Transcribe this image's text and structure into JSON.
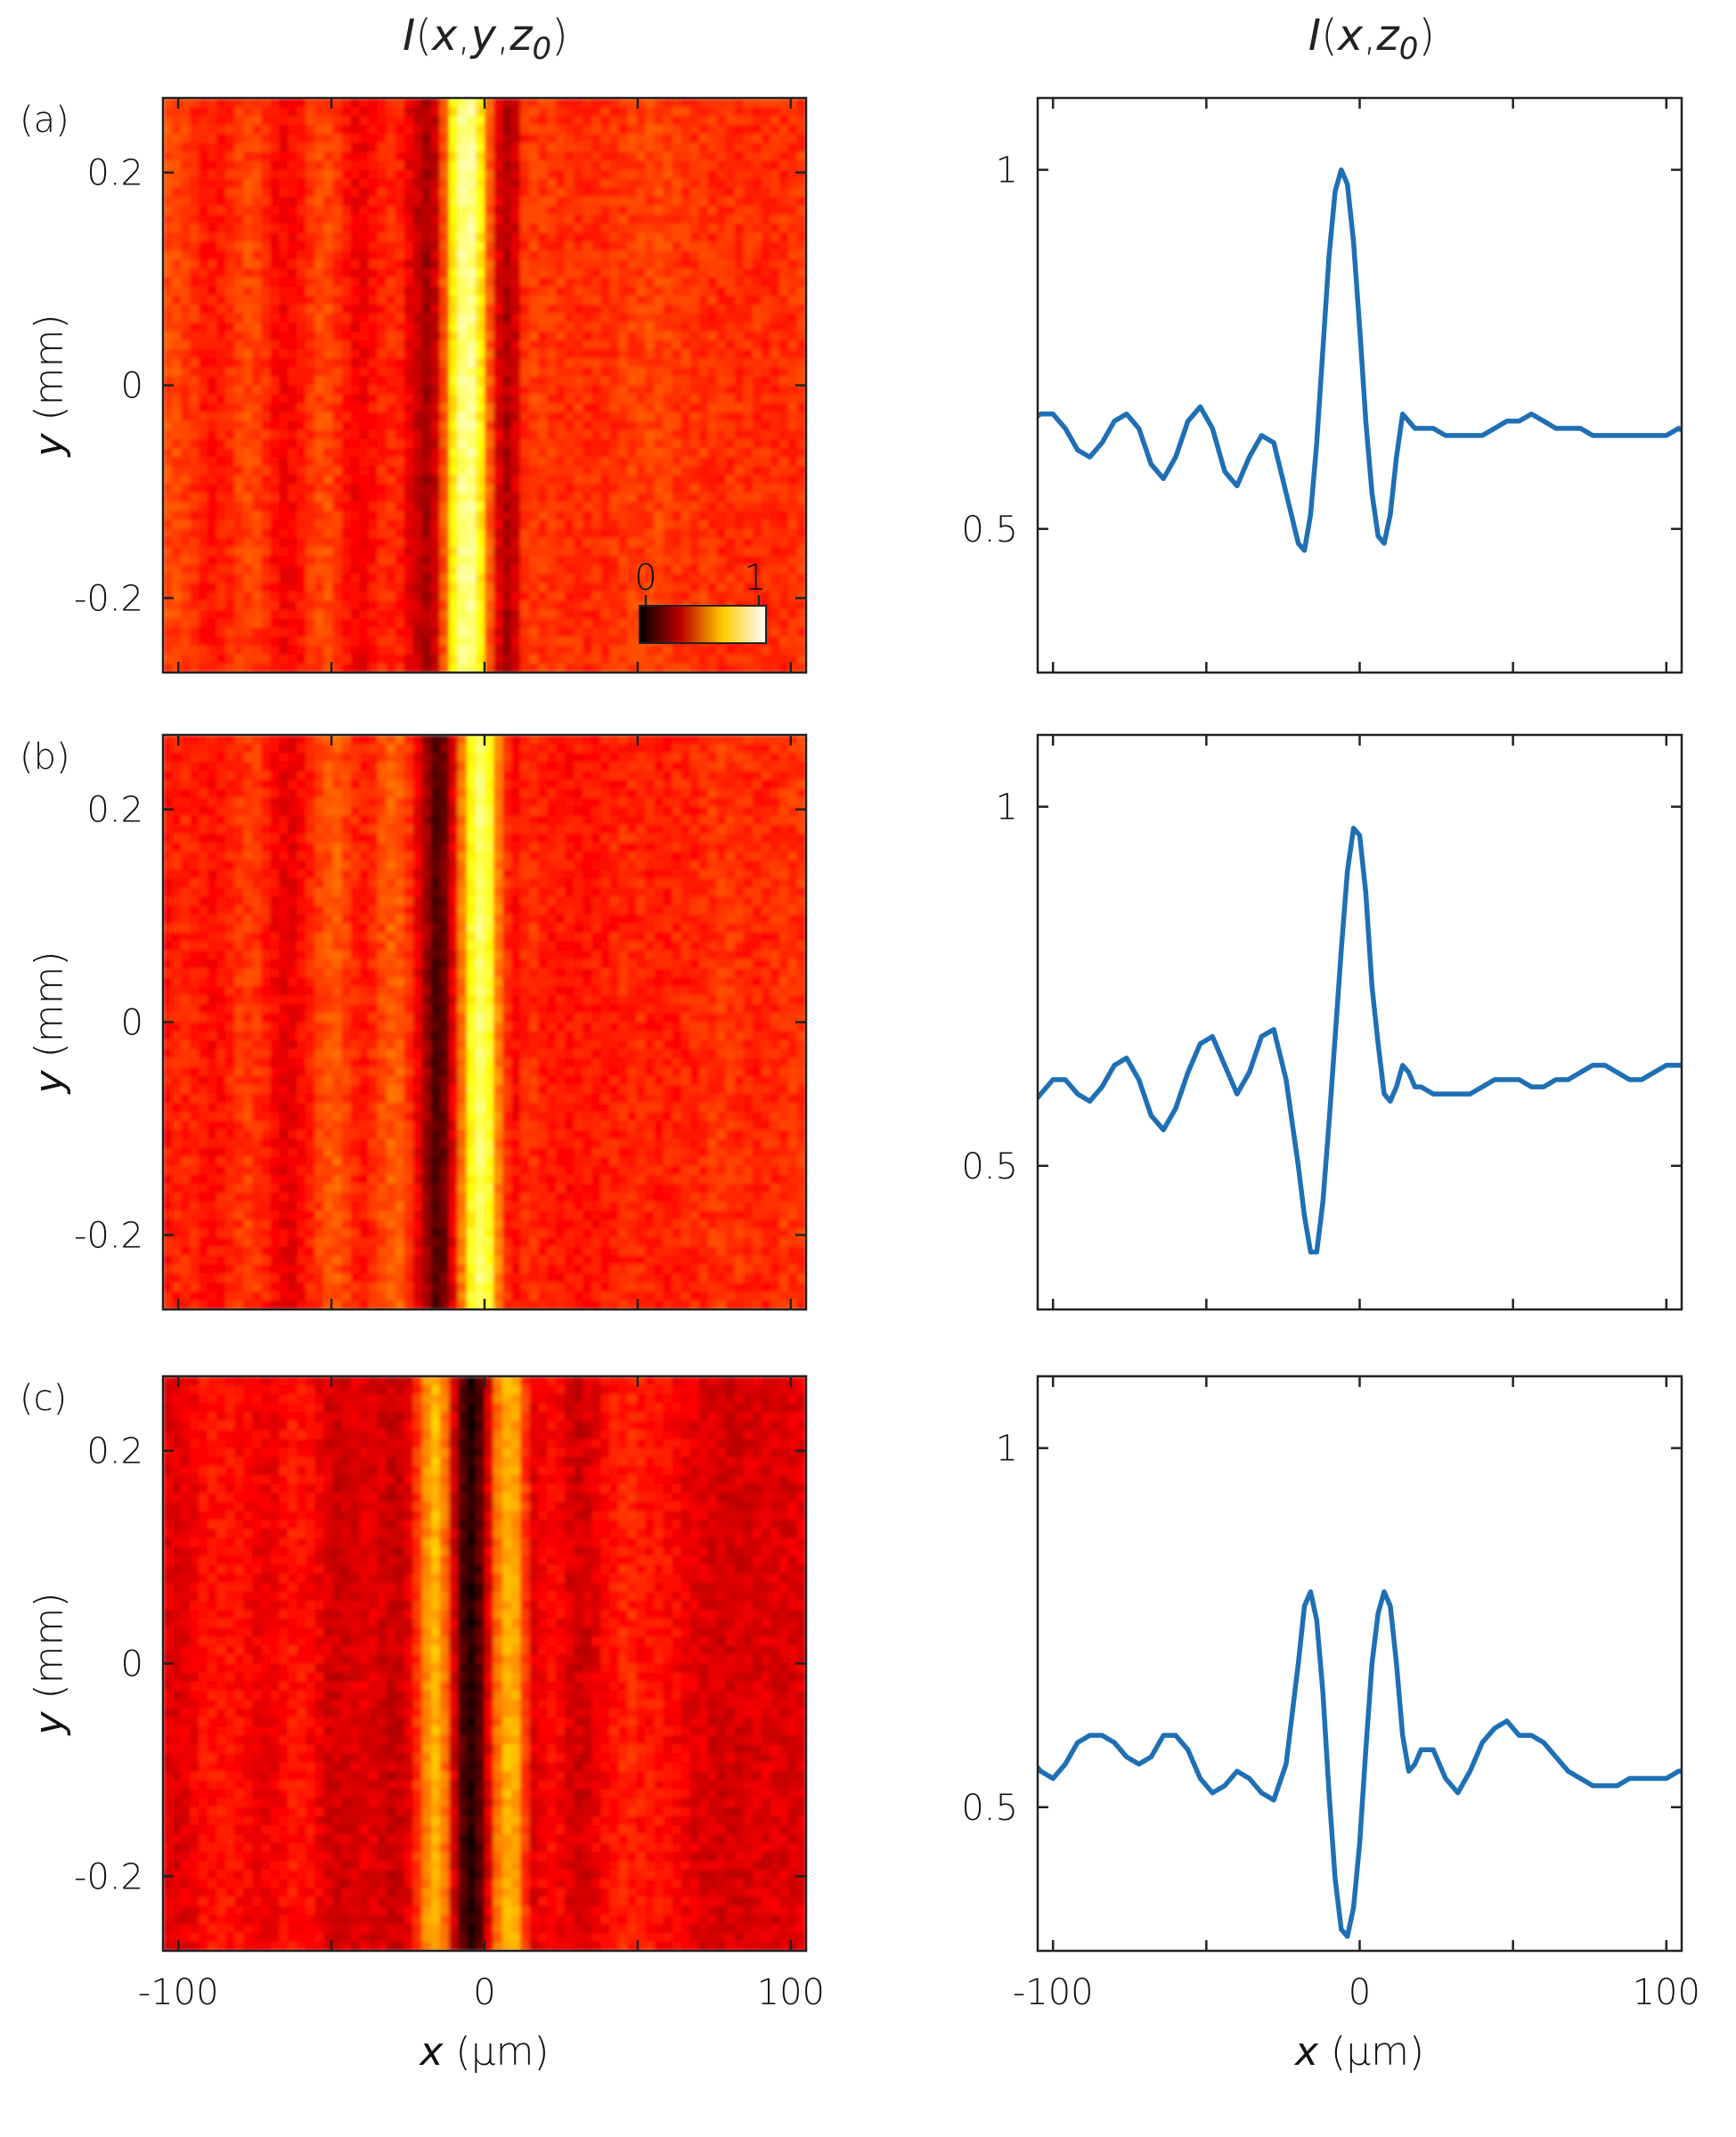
{
  "titles": {
    "left": "I(x,y,z0)",
    "right": "I(x,z0)"
  },
  "colorbar": {
    "min_label": "0",
    "max_label": "1"
  },
  "colors": {
    "line": "#1f6fb5",
    "axes": "#222222"
  },
  "chart_data": [
    {
      "type": "heatmap",
      "panel_label": "(a)",
      "x_ticks": [
        "-100",
        "0",
        "100"
      ],
      "y_ticks": [
        "0.2",
        "0",
        "-0.2"
      ],
      "xlim_um": [
        -105,
        105
      ],
      "ylim_mm": [
        -0.27,
        0.27
      ],
      "xlabel": "x (μm)",
      "ylabel": "y (mm)",
      "note_profile_source": "intensity varies along x only; equals the line profile of the same row"
    },
    {
      "type": "line",
      "row": "a",
      "x_ticks": [
        "-100",
        "0",
        "100"
      ],
      "y_ticks": [
        "1",
        "0.5"
      ],
      "xlim": [
        -105,
        105
      ],
      "ylim": [
        0.3,
        1.1
      ],
      "x": [
        -108,
        -104,
        -100,
        -96,
        -92,
        -88,
        -84,
        -80,
        -76,
        -72,
        -68,
        -64,
        -60,
        -56,
        -52,
        -48,
        -44,
        -40,
        -36,
        -32,
        -28,
        -24,
        -20,
        -18,
        -16,
        -14,
        -12,
        -10,
        -8,
        -6,
        -4,
        -2,
        0,
        2,
        4,
        6,
        8,
        10,
        12,
        14,
        16,
        18,
        20,
        24,
        28,
        32,
        36,
        40,
        44,
        48,
        52,
        56,
        60,
        64,
        68,
        72,
        76,
        80,
        84,
        88,
        92,
        96,
        100,
        104,
        108
      ],
      "y": [
        0.65,
        0.66,
        0.66,
        0.64,
        0.61,
        0.6,
        0.62,
        0.65,
        0.66,
        0.64,
        0.59,
        0.57,
        0.6,
        0.65,
        0.67,
        0.64,
        0.58,
        0.56,
        0.6,
        0.63,
        0.62,
        0.55,
        0.48,
        0.47,
        0.52,
        0.62,
        0.75,
        0.88,
        0.97,
        1.0,
        0.98,
        0.9,
        0.78,
        0.65,
        0.55,
        0.49,
        0.48,
        0.52,
        0.6,
        0.66,
        0.65,
        0.64,
        0.64,
        0.64,
        0.63,
        0.63,
        0.63,
        0.63,
        0.64,
        0.65,
        0.65,
        0.66,
        0.65,
        0.64,
        0.64,
        0.64,
        0.63,
        0.63,
        0.63,
        0.63,
        0.63,
        0.63,
        0.63,
        0.64,
        0.63
      ]
    },
    {
      "type": "heatmap",
      "panel_label": "(b)",
      "x_ticks": [
        "-100",
        "0",
        "100"
      ],
      "y_ticks": [
        "0.2",
        "0",
        "-0.2"
      ],
      "xlim_um": [
        -105,
        105
      ],
      "ylim_mm": [
        -0.27,
        0.27
      ],
      "xlabel": "x (μm)",
      "ylabel": "y (mm)"
    },
    {
      "type": "line",
      "row": "b",
      "x_ticks": [
        "-100",
        "0",
        "100"
      ],
      "y_ticks": [
        "1",
        "0.5"
      ],
      "xlim": [
        -105,
        105
      ],
      "ylim": [
        0.3,
        1.1
      ],
      "x": [
        -108,
        -104,
        -100,
        -96,
        -92,
        -88,
        -84,
        -80,
        -76,
        -72,
        -68,
        -64,
        -60,
        -56,
        -52,
        -48,
        -44,
        -40,
        -36,
        -32,
        -28,
        -24,
        -20,
        -18,
        -16,
        -14,
        -12,
        -10,
        -8,
        -6,
        -4,
        -2,
        0,
        2,
        4,
        6,
        8,
        10,
        12,
        14,
        16,
        18,
        20,
        24,
        28,
        32,
        36,
        40,
        44,
        48,
        52,
        56,
        60,
        64,
        68,
        72,
        76,
        80,
        84,
        88,
        92,
        96,
        100,
        104,
        108
      ],
      "y": [
        0.58,
        0.6,
        0.62,
        0.62,
        0.6,
        0.59,
        0.61,
        0.64,
        0.65,
        0.62,
        0.57,
        0.55,
        0.58,
        0.63,
        0.67,
        0.68,
        0.64,
        0.6,
        0.63,
        0.68,
        0.69,
        0.62,
        0.5,
        0.43,
        0.38,
        0.38,
        0.45,
        0.56,
        0.68,
        0.8,
        0.91,
        0.97,
        0.96,
        0.88,
        0.75,
        0.67,
        0.6,
        0.59,
        0.61,
        0.64,
        0.63,
        0.61,
        0.61,
        0.6,
        0.6,
        0.6,
        0.6,
        0.61,
        0.62,
        0.62,
        0.62,
        0.61,
        0.61,
        0.62,
        0.62,
        0.63,
        0.64,
        0.64,
        0.63,
        0.62,
        0.62,
        0.63,
        0.64,
        0.64,
        0.64
      ]
    },
    {
      "type": "heatmap",
      "panel_label": "(c)",
      "x_ticks": [
        "-100",
        "0",
        "100"
      ],
      "y_ticks": [
        "0.2",
        "0",
        "-0.2"
      ],
      "xlim_um": [
        -105,
        105
      ],
      "ylim_mm": [
        -0.27,
        0.27
      ],
      "xlabel": "x (μm)",
      "ylabel": "y (mm)"
    },
    {
      "type": "line",
      "row": "c",
      "x_ticks": [
        "-100",
        "0",
        "100"
      ],
      "y_ticks": [
        "1",
        "0.5"
      ],
      "xlim": [
        -105,
        105
      ],
      "ylim": [
        0.3,
        1.1
      ],
      "x": [
        -108,
        -104,
        -100,
        -96,
        -92,
        -88,
        -84,
        -80,
        -76,
        -72,
        -68,
        -64,
        -60,
        -56,
        -52,
        -48,
        -44,
        -40,
        -36,
        -32,
        -28,
        -24,
        -20,
        -18,
        -16,
        -14,
        -12,
        -10,
        -8,
        -6,
        -4,
        -2,
        0,
        2,
        4,
        6,
        8,
        10,
        12,
        14,
        16,
        18,
        20,
        24,
        28,
        32,
        36,
        40,
        44,
        48,
        52,
        56,
        60,
        64,
        68,
        72,
        76,
        80,
        84,
        88,
        92,
        96,
        100,
        104,
        108
      ],
      "y": [
        0.57,
        0.55,
        0.54,
        0.56,
        0.59,
        0.6,
        0.6,
        0.59,
        0.57,
        0.56,
        0.57,
        0.6,
        0.6,
        0.58,
        0.54,
        0.52,
        0.53,
        0.55,
        0.54,
        0.52,
        0.51,
        0.56,
        0.7,
        0.78,
        0.8,
        0.76,
        0.66,
        0.52,
        0.4,
        0.33,
        0.32,
        0.36,
        0.45,
        0.58,
        0.7,
        0.77,
        0.8,
        0.78,
        0.7,
        0.6,
        0.55,
        0.56,
        0.58,
        0.58,
        0.54,
        0.52,
        0.55,
        0.59,
        0.61,
        0.62,
        0.6,
        0.6,
        0.59,
        0.57,
        0.55,
        0.54,
        0.53,
        0.53,
        0.53,
        0.54,
        0.54,
        0.54,
        0.54,
        0.55,
        0.55
      ]
    }
  ]
}
